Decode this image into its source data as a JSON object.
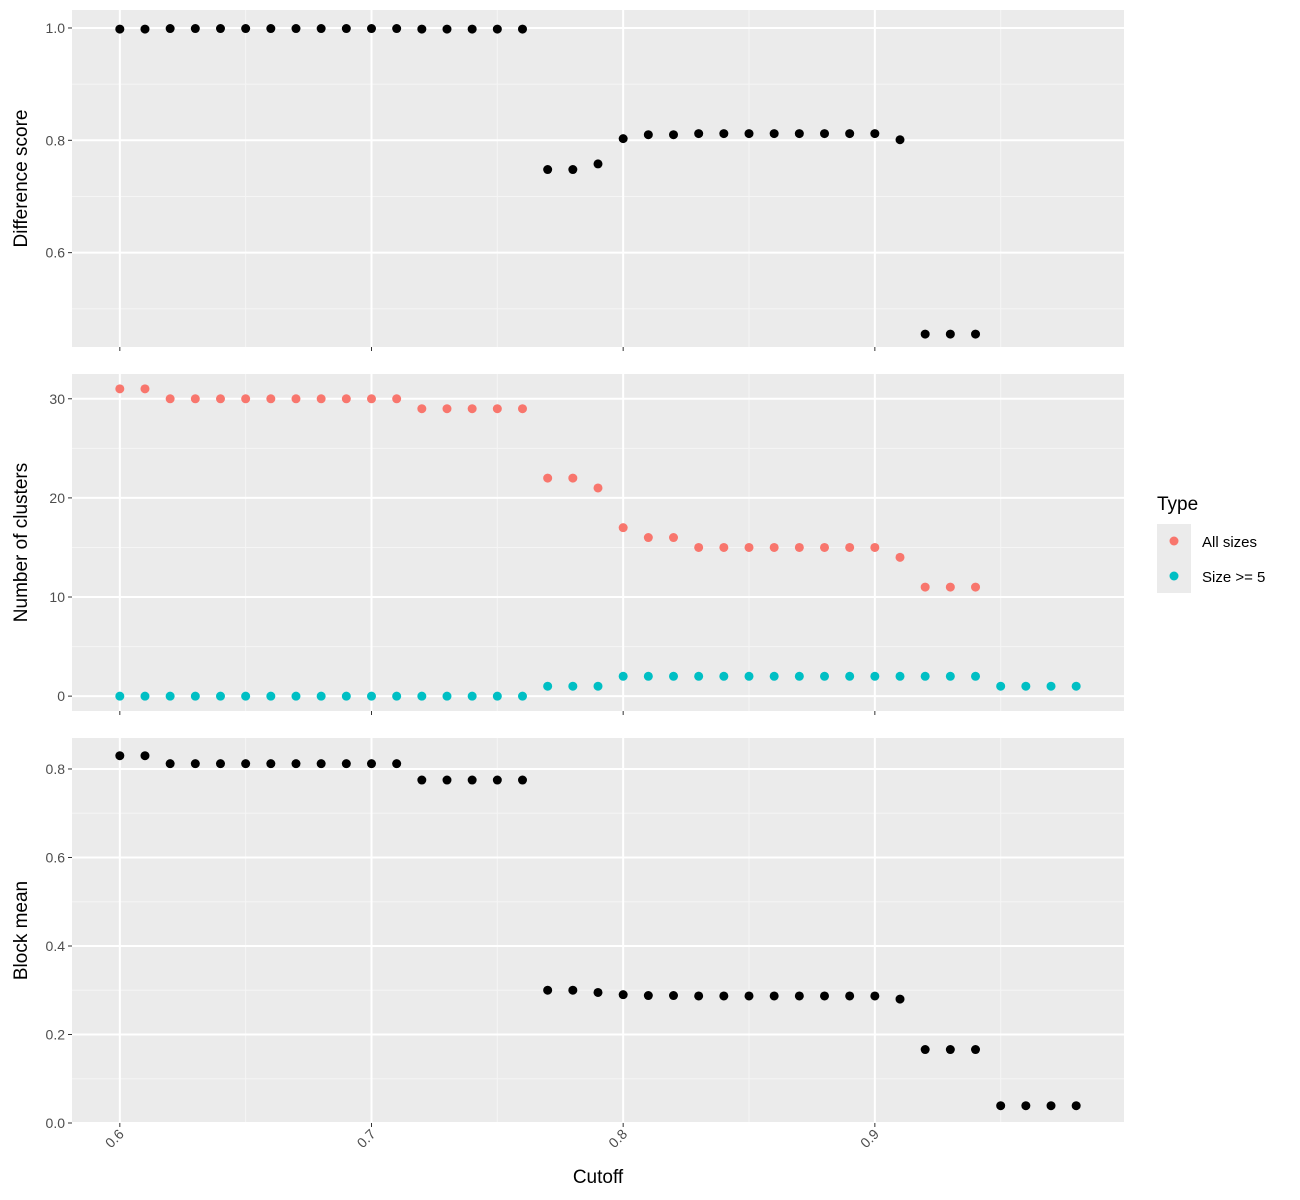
{
  "chart_data": [
    {
      "type": "scatter",
      "panel": "top",
      "ylabel": "Difference score",
      "ylim": [
        0.432,
        1.032
      ],
      "y_ticks": [
        0.6,
        0.8,
        1.0
      ],
      "y_tick_labels": [
        "0.6",
        "0.8",
        "1.0"
      ],
      "grid": true,
      "series": [
        {
          "color": "#000000",
          "points": [
            [
              0.6,
              0.998
            ],
            [
              0.61,
              0.998
            ],
            [
              0.62,
              0.999
            ],
            [
              0.63,
              0.999
            ],
            [
              0.64,
              0.999
            ],
            [
              0.65,
              0.999
            ],
            [
              0.66,
              0.999
            ],
            [
              0.67,
              0.999
            ],
            [
              0.68,
              0.999
            ],
            [
              0.69,
              0.999
            ],
            [
              0.7,
              0.999
            ],
            [
              0.71,
              0.999
            ],
            [
              0.72,
              0.998
            ],
            [
              0.73,
              0.998
            ],
            [
              0.74,
              0.998
            ],
            [
              0.75,
              0.998
            ],
            [
              0.76,
              0.998
            ],
            [
              0.77,
              0.748
            ],
            [
              0.78,
              0.748
            ],
            [
              0.79,
              0.758
            ],
            [
              0.8,
              0.803
            ],
            [
              0.81,
              0.81
            ],
            [
              0.82,
              0.81
            ],
            [
              0.83,
              0.812
            ],
            [
              0.84,
              0.812
            ],
            [
              0.85,
              0.812
            ],
            [
              0.86,
              0.812
            ],
            [
              0.87,
              0.812
            ],
            [
              0.88,
              0.812
            ],
            [
              0.89,
              0.812
            ],
            [
              0.9,
              0.812
            ],
            [
              0.91,
              0.801
            ],
            [
              0.92,
              0.455
            ],
            [
              0.93,
              0.455
            ],
            [
              0.94,
              0.455
            ]
          ]
        }
      ]
    },
    {
      "type": "scatter",
      "panel": "middle",
      "ylabel": "Number of clusters",
      "ylim": [
        -1.5,
        32.5
      ],
      "y_ticks": [
        0,
        10,
        20,
        30
      ],
      "y_tick_labels": [
        "0",
        "10",
        "20",
        "30"
      ],
      "grid": true,
      "series": [
        {
          "name": "All sizes",
          "color": "#F8766D",
          "points": [
            [
              0.6,
              31
            ],
            [
              0.61,
              31
            ],
            [
              0.62,
              30
            ],
            [
              0.63,
              30
            ],
            [
              0.64,
              30
            ],
            [
              0.65,
              30
            ],
            [
              0.66,
              30
            ],
            [
              0.67,
              30
            ],
            [
              0.68,
              30
            ],
            [
              0.69,
              30
            ],
            [
              0.7,
              30
            ],
            [
              0.71,
              30
            ],
            [
              0.72,
              29
            ],
            [
              0.73,
              29
            ],
            [
              0.74,
              29
            ],
            [
              0.75,
              29
            ],
            [
              0.76,
              29
            ],
            [
              0.77,
              22
            ],
            [
              0.78,
              22
            ],
            [
              0.79,
              21
            ],
            [
              0.8,
              17
            ],
            [
              0.81,
              16
            ],
            [
              0.82,
              16
            ],
            [
              0.83,
              15
            ],
            [
              0.84,
              15
            ],
            [
              0.85,
              15
            ],
            [
              0.86,
              15
            ],
            [
              0.87,
              15
            ],
            [
              0.88,
              15
            ],
            [
              0.89,
              15
            ],
            [
              0.9,
              15
            ],
            [
              0.91,
              14
            ],
            [
              0.92,
              11
            ],
            [
              0.93,
              11
            ],
            [
              0.94,
              11
            ]
          ]
        },
        {
          "name": "Size >= 5",
          "color": "#00BFC4",
          "points": [
            [
              0.6,
              0
            ],
            [
              0.61,
              0
            ],
            [
              0.62,
              0
            ],
            [
              0.63,
              0
            ],
            [
              0.64,
              0
            ],
            [
              0.65,
              0
            ],
            [
              0.66,
              0
            ],
            [
              0.67,
              0
            ],
            [
              0.68,
              0
            ],
            [
              0.69,
              0
            ],
            [
              0.7,
              0
            ],
            [
              0.71,
              0
            ],
            [
              0.72,
              0
            ],
            [
              0.73,
              0
            ],
            [
              0.74,
              0
            ],
            [
              0.75,
              0
            ],
            [
              0.76,
              0
            ],
            [
              0.77,
              1
            ],
            [
              0.78,
              1
            ],
            [
              0.79,
              1
            ],
            [
              0.8,
              2
            ],
            [
              0.81,
              2
            ],
            [
              0.82,
              2
            ],
            [
              0.83,
              2
            ],
            [
              0.84,
              2
            ],
            [
              0.85,
              2
            ],
            [
              0.86,
              2
            ],
            [
              0.87,
              2
            ],
            [
              0.88,
              2
            ],
            [
              0.89,
              2
            ],
            [
              0.9,
              2
            ],
            [
              0.91,
              2
            ],
            [
              0.92,
              2
            ],
            [
              0.93,
              2
            ],
            [
              0.94,
              2
            ],
            [
              0.95,
              1
            ],
            [
              0.96,
              1
            ],
            [
              0.97,
              1
            ],
            [
              0.98,
              1
            ]
          ]
        }
      ]
    },
    {
      "type": "scatter",
      "panel": "bottom",
      "ylabel": "Block mean",
      "xlabel": "Cutoff",
      "ylim": [
        0.0,
        0.87
      ],
      "y_ticks": [
        0.0,
        0.2,
        0.4,
        0.6,
        0.8
      ],
      "y_tick_labels": [
        "0.0",
        "0.2",
        "0.4",
        "0.6",
        "0.8"
      ],
      "grid": true,
      "series": [
        {
          "color": "#000000",
          "points": [
            [
              0.6,
              0.83
            ],
            [
              0.61,
              0.83
            ],
            [
              0.62,
              0.812
            ],
            [
              0.63,
              0.812
            ],
            [
              0.64,
              0.812
            ],
            [
              0.65,
              0.812
            ],
            [
              0.66,
              0.812
            ],
            [
              0.67,
              0.812
            ],
            [
              0.68,
              0.812
            ],
            [
              0.69,
              0.812
            ],
            [
              0.7,
              0.812
            ],
            [
              0.71,
              0.812
            ],
            [
              0.72,
              0.775
            ],
            [
              0.73,
              0.775
            ],
            [
              0.74,
              0.775
            ],
            [
              0.75,
              0.775
            ],
            [
              0.76,
              0.775
            ],
            [
              0.77,
              0.3
            ],
            [
              0.78,
              0.3
            ],
            [
              0.79,
              0.295
            ],
            [
              0.8,
              0.29
            ],
            [
              0.81,
              0.288
            ],
            [
              0.82,
              0.288
            ],
            [
              0.83,
              0.287
            ],
            [
              0.84,
              0.287
            ],
            [
              0.85,
              0.287
            ],
            [
              0.86,
              0.287
            ],
            [
              0.87,
              0.287
            ],
            [
              0.88,
              0.287
            ],
            [
              0.89,
              0.287
            ],
            [
              0.9,
              0.287
            ],
            [
              0.91,
              0.28
            ],
            [
              0.92,
              0.166
            ],
            [
              0.93,
              0.166
            ],
            [
              0.94,
              0.166
            ],
            [
              0.95,
              0.039
            ],
            [
              0.96,
              0.039
            ],
            [
              0.97,
              0.039
            ],
            [
              0.98,
              0.039
            ]
          ]
        }
      ]
    }
  ],
  "x_axis": {
    "label": "Cutoff",
    "xlim": [
      0.581,
      0.999
    ],
    "ticks": [
      0.6,
      0.7,
      0.8,
      0.9
    ],
    "tick_labels": [
      "0.6",
      "0.7",
      "0.8",
      "0.9"
    ],
    "tick_label_rotation_deg": -45
  },
  "legend": {
    "title": "Type",
    "position": "right",
    "items": [
      {
        "label": "All sizes",
        "color": "#F8766D"
      },
      {
        "label": "Size >= 5",
        "color": "#00BFC4"
      }
    ]
  },
  "theme": {
    "panel_background": "#EBEBEB",
    "grid_major": "#FFFFFF",
    "grid_minor": "#F5F5F5",
    "text_color": "#4d4d4d"
  }
}
